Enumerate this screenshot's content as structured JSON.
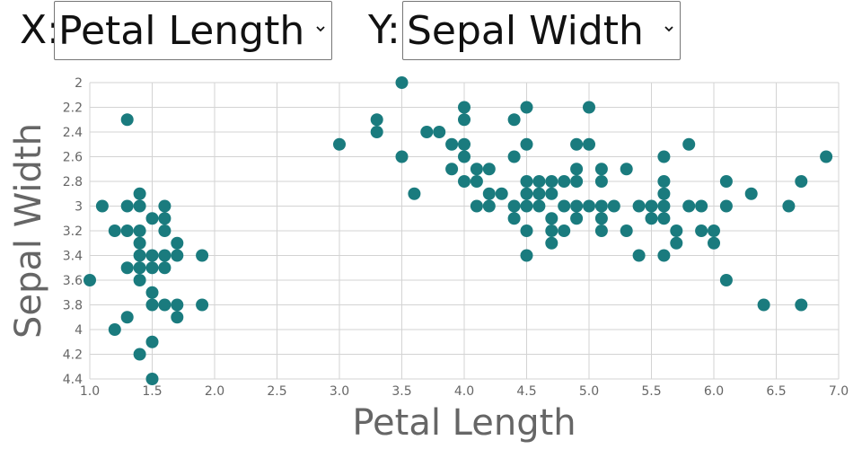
{
  "controls": {
    "x_label": "X:",
    "x_selected": "Petal Length",
    "y_label": "Y:",
    "y_selected": "Sepal Width"
  },
  "colors": {
    "point": "#1a7b7e",
    "grid": "#d3d3d3",
    "tick_text": "#666666",
    "axis_title": "#666666"
  },
  "chart_data": {
    "type": "scatter",
    "xlabel": "Petal Length",
    "ylabel": "Sepal Width",
    "xlim": [
      1.0,
      7.0
    ],
    "ylim": [
      2.0,
      4.4
    ],
    "y_inverted": true,
    "grid": true,
    "xticks": [
      1.0,
      1.5,
      2.0,
      2.5,
      3.0,
      3.5,
      4.0,
      4.5,
      5.0,
      5.5,
      6.0,
      6.5,
      7.0
    ],
    "xtick_labels": [
      "1.0",
      "1.5",
      "2.0",
      "2.5",
      "3.0",
      "3.5",
      "4.0",
      "4.5",
      "5.0",
      "5.5",
      "6.0",
      "6.5",
      "7.0"
    ],
    "yticks": [
      2,
      2.2,
      2.4,
      2.6,
      2.8,
      3,
      3.2,
      3.4,
      3.6,
      3.8,
      4,
      4.2,
      4.4
    ],
    "ytick_labels": [
      "2",
      "2.2",
      "2.4",
      "2.6",
      "2.8",
      "3",
      "3.2",
      "3.4",
      "3.6",
      "3.8",
      "4",
      "4.2",
      "4.4"
    ],
    "points": [
      [
        1.0,
        3.6
      ],
      [
        1.1,
        3.0
      ],
      [
        1.2,
        3.2
      ],
      [
        1.2,
        4.0
      ],
      [
        1.3,
        2.3
      ],
      [
        1.3,
        3.0
      ],
      [
        1.3,
        3.2
      ],
      [
        1.3,
        3.5
      ],
      [
        1.3,
        3.9
      ],
      [
        1.4,
        2.9
      ],
      [
        1.4,
        3.0
      ],
      [
        1.4,
        3.2
      ],
      [
        1.4,
        3.3
      ],
      [
        1.4,
        3.4
      ],
      [
        1.4,
        3.5
      ],
      [
        1.4,
        3.6
      ],
      [
        1.4,
        4.2
      ],
      [
        1.5,
        3.1
      ],
      [
        1.5,
        3.4
      ],
      [
        1.5,
        3.5
      ],
      [
        1.5,
        3.7
      ],
      [
        1.5,
        3.8
      ],
      [
        1.5,
        4.1
      ],
      [
        1.5,
        4.4
      ],
      [
        1.6,
        3.0
      ],
      [
        1.6,
        3.1
      ],
      [
        1.6,
        3.2
      ],
      [
        1.6,
        3.4
      ],
      [
        1.6,
        3.5
      ],
      [
        1.6,
        3.8
      ],
      [
        1.7,
        3.3
      ],
      [
        1.7,
        3.4
      ],
      [
        1.7,
        3.8
      ],
      [
        1.7,
        3.9
      ],
      [
        1.9,
        3.4
      ],
      [
        1.9,
        3.8
      ],
      [
        3.0,
        2.5
      ],
      [
        3.3,
        2.3
      ],
      [
        3.3,
        2.4
      ],
      [
        3.5,
        2.0
      ],
      [
        3.5,
        2.6
      ],
      [
        3.6,
        2.9
      ],
      [
        3.7,
        2.4
      ],
      [
        3.8,
        2.4
      ],
      [
        3.9,
        2.5
      ],
      [
        3.9,
        2.7
      ],
      [
        4.0,
        2.2
      ],
      [
        4.0,
        2.3
      ],
      [
        4.0,
        2.5
      ],
      [
        4.0,
        2.6
      ],
      [
        4.0,
        2.8
      ],
      [
        4.1,
        2.7
      ],
      [
        4.1,
        2.8
      ],
      [
        4.1,
        3.0
      ],
      [
        4.2,
        2.7
      ],
      [
        4.2,
        2.9
      ],
      [
        4.2,
        3.0
      ],
      [
        4.3,
        2.9
      ],
      [
        4.4,
        2.3
      ],
      [
        4.4,
        2.6
      ],
      [
        4.4,
        3.0
      ],
      [
        4.4,
        3.1
      ],
      [
        4.5,
        2.2
      ],
      [
        4.5,
        2.5
      ],
      [
        4.5,
        2.8
      ],
      [
        4.5,
        2.9
      ],
      [
        4.5,
        3.0
      ],
      [
        4.5,
        3.2
      ],
      [
        4.5,
        3.4
      ],
      [
        4.6,
        2.8
      ],
      [
        4.6,
        2.9
      ],
      [
        4.6,
        3.0
      ],
      [
        4.7,
        2.8
      ],
      [
        4.7,
        2.9
      ],
      [
        4.7,
        3.1
      ],
      [
        4.7,
        3.2
      ],
      [
        4.7,
        3.3
      ],
      [
        4.8,
        2.8
      ],
      [
        4.8,
        3.0
      ],
      [
        4.8,
        3.2
      ],
      [
        4.9,
        2.5
      ],
      [
        4.9,
        2.7
      ],
      [
        4.9,
        2.8
      ],
      [
        4.9,
        3.0
      ],
      [
        4.9,
        3.1
      ],
      [
        5.0,
        2.2
      ],
      [
        5.0,
        2.5
      ],
      [
        5.0,
        3.0
      ],
      [
        5.1,
        2.7
      ],
      [
        5.1,
        2.8
      ],
      [
        5.1,
        3.0
      ],
      [
        5.1,
        3.1
      ],
      [
        5.1,
        3.2
      ],
      [
        5.2,
        3.0
      ],
      [
        5.3,
        2.7
      ],
      [
        5.3,
        3.2
      ],
      [
        5.4,
        3.0
      ],
      [
        5.4,
        3.4
      ],
      [
        5.5,
        3.0
      ],
      [
        5.5,
        3.1
      ],
      [
        5.6,
        2.6
      ],
      [
        5.6,
        2.8
      ],
      [
        5.6,
        2.9
      ],
      [
        5.6,
        3.0
      ],
      [
        5.6,
        3.1
      ],
      [
        5.6,
        3.4
      ],
      [
        5.7,
        3.2
      ],
      [
        5.7,
        3.3
      ],
      [
        5.8,
        2.5
      ],
      [
        5.8,
        3.0
      ],
      [
        5.9,
        3.0
      ],
      [
        5.9,
        3.2
      ],
      [
        6.0,
        3.2
      ],
      [
        6.0,
        3.3
      ],
      [
        6.1,
        2.8
      ],
      [
        6.1,
        3.0
      ],
      [
        6.1,
        3.6
      ],
      [
        6.3,
        2.9
      ],
      [
        6.4,
        3.8
      ],
      [
        6.6,
        3.0
      ],
      [
        6.7,
        2.8
      ],
      [
        6.7,
        3.8
      ],
      [
        6.9,
        2.6
      ]
    ]
  }
}
